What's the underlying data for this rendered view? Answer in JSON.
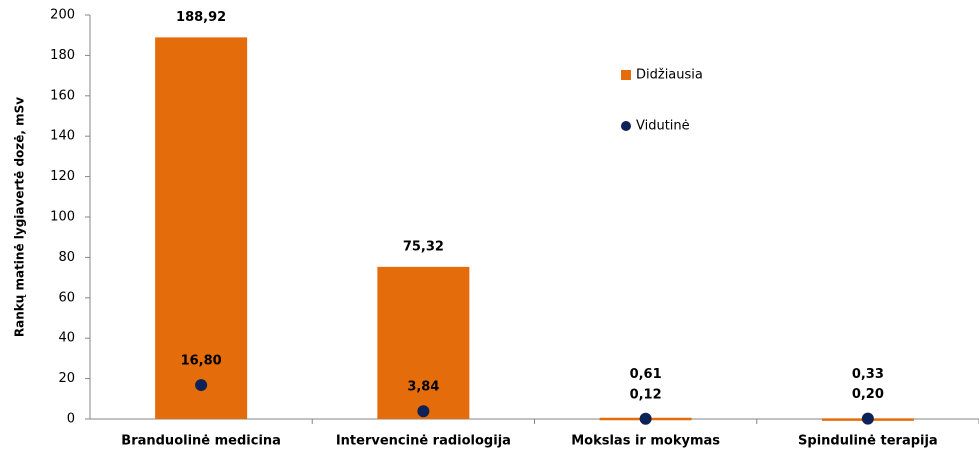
{
  "chart_data": {
    "type": "bar",
    "y_label": "Rankų matinė lygiavertė dozė, mSv",
    "categories": [
      "Branduolinė medicina",
      "Intervencinė radiologija",
      "Mokslas ir mokymas",
      "Spindulinė terapija"
    ],
    "series": [
      {
        "name": "Didžiausia",
        "color": "#e46c0a",
        "marker": "bar",
        "label_color": "#ff0000",
        "values": [
          188.92,
          75.32,
          0.61,
          0.33
        ],
        "value_labels": [
          "188,92",
          "75,32",
          "0,61",
          "0,33"
        ]
      },
      {
        "name": "Vidutinė",
        "color": "#0d2357",
        "marker": "dot",
        "label_color": "#000000",
        "values": [
          16.8,
          3.84,
          0.12,
          0.2
        ],
        "value_labels": [
          "16,80",
          "3,84",
          "0,12",
          "0,20"
        ]
      }
    ],
    "ylim": [
      0,
      200
    ],
    "yticks": [
      0,
      20,
      40,
      60,
      80,
      100,
      120,
      140,
      160,
      180,
      200
    ],
    "grid": false,
    "legend": "top-right"
  }
}
